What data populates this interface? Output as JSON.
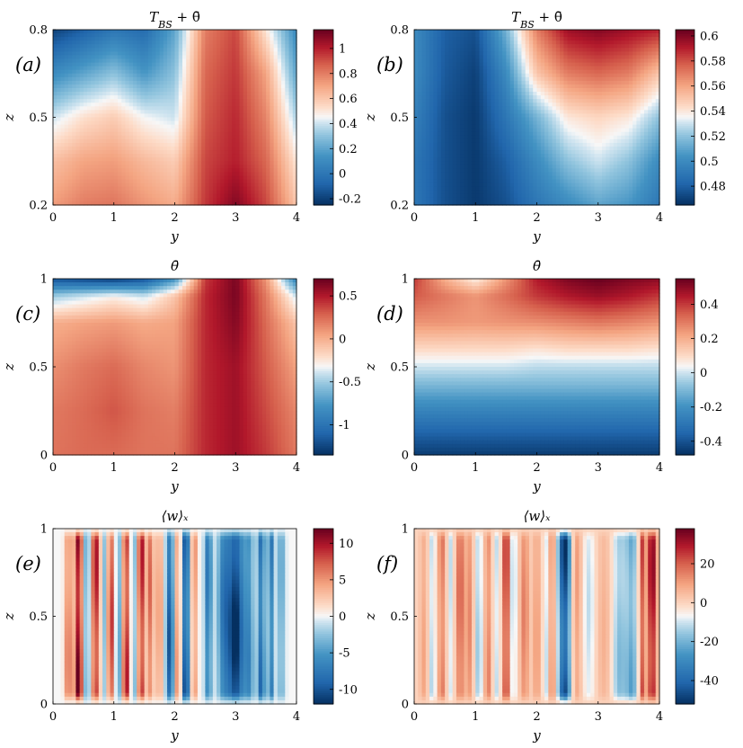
{
  "colors": {
    "colormap_low": "#053061",
    "colormap_mid": "#f7f7f7",
    "colormap_high": "#67001f"
  },
  "chart_data": [
    {
      "type": "heatmap",
      "panel_label": "(a)",
      "title": "T_BS + θ̄",
      "xlabel": "y",
      "ylabel": "z",
      "xlim": [
        0,
        4
      ],
      "ylim": [
        0.2,
        0.8
      ],
      "x_ticks": [
        "0",
        "1",
        "2",
        "3",
        "4"
      ],
      "y_ticks": [
        "0.2",
        "0.5",
        "0.8"
      ],
      "colorbar": {
        "range": [
          -0.25,
          1.15
        ],
        "ticks": [
          "-0.2",
          "0",
          "0.2",
          "0.4",
          "0.6",
          "0.8",
          "1"
        ],
        "tick_values": [
          -0.2,
          0,
          0.2,
          0.4,
          0.6,
          0.8,
          1.0
        ]
      },
      "x": [
        0,
        0.5,
        1,
        1.5,
        2,
        2.5,
        3,
        3.5,
        4
      ],
      "z": [
        0.2,
        0.35,
        0.5,
        0.65,
        0.8
      ],
      "values": [
        [
          0.72,
          0.8,
          0.82,
          0.74,
          0.68,
          0.95,
          1.1,
          0.92,
          0.6
        ],
        [
          0.62,
          0.7,
          0.72,
          0.64,
          0.58,
          0.92,
          1.0,
          0.85,
          0.5
        ],
        [
          0.4,
          0.52,
          0.58,
          0.45,
          0.4,
          0.88,
          0.98,
          0.78,
          0.35
        ],
        [
          0.1,
          0.2,
          0.3,
          0.15,
          0.3,
          0.85,
          0.95,
          0.7,
          0.2
        ],
        [
          -0.2,
          -0.1,
          0.0,
          -0.05,
          0.2,
          0.8,
          0.92,
          0.5,
          0.1
        ]
      ]
    },
    {
      "type": "heatmap",
      "panel_label": "(b)",
      "title": "T_BS + θ̄",
      "xlabel": "y",
      "ylabel": "z",
      "xlim": [
        0,
        4
      ],
      "ylim": [
        0.2,
        0.8
      ],
      "x_ticks": [
        "0",
        "1",
        "2",
        "3",
        "4"
      ],
      "y_ticks": [
        "0.2",
        "0.5",
        "0.8"
      ],
      "colorbar": {
        "range": [
          0.465,
          0.605
        ],
        "ticks": [
          "0.48",
          "0.5",
          "0.52",
          "0.54",
          "0.56",
          "0.58",
          "0.6"
        ],
        "tick_values": [
          0.48,
          0.5,
          0.52,
          0.54,
          0.56,
          0.58,
          0.6
        ]
      },
      "x": [
        0,
        0.5,
        1,
        1.5,
        2,
        2.5,
        3,
        3.5,
        4
      ],
      "z": [
        0.2,
        0.35,
        0.5,
        0.65,
        0.8
      ],
      "values": [
        [
          0.49,
          0.475,
          0.468,
          0.475,
          0.49,
          0.5,
          0.51,
          0.505,
          0.49
        ],
        [
          0.49,
          0.475,
          0.468,
          0.48,
          0.5,
          0.52,
          0.53,
          0.52,
          0.5
        ],
        [
          0.495,
          0.475,
          0.468,
          0.49,
          0.515,
          0.54,
          0.545,
          0.54,
          0.52
        ],
        [
          0.5,
          0.478,
          0.47,
          0.5,
          0.55,
          0.57,
          0.575,
          0.57,
          0.55
        ],
        [
          0.5,
          0.48,
          0.475,
          0.515,
          0.57,
          0.595,
          0.6,
          0.595,
          0.59
        ]
      ]
    },
    {
      "type": "heatmap",
      "panel_label": "(c)",
      "title": "θ̄",
      "xlabel": "y",
      "ylabel": "z",
      "xlim": [
        0,
        4
      ],
      "ylim": [
        0,
        1
      ],
      "x_ticks": [
        "0",
        "1",
        "2",
        "3",
        "4"
      ],
      "y_ticks": [
        "0",
        "0.5",
        "1"
      ],
      "colorbar": {
        "range": [
          -1.35,
          0.7
        ],
        "ticks": [
          "-1",
          "-0.5",
          "0",
          "0.5"
        ],
        "tick_values": [
          -1.0,
          -0.5,
          0.0,
          0.5
        ]
      },
      "x": [
        0,
        0.5,
        1,
        1.5,
        2,
        2.5,
        3,
        3.5,
        4
      ],
      "z": [
        0,
        0.25,
        0.5,
        0.75,
        0.9,
        1
      ],
      "values": [
        [
          0.22,
          0.25,
          0.25,
          0.22,
          0.22,
          0.45,
          0.55,
          0.4,
          0.2
        ],
        [
          0.2,
          0.25,
          0.32,
          0.22,
          0.18,
          0.45,
          0.55,
          0.35,
          0.15
        ],
        [
          0.12,
          0.2,
          0.25,
          0.15,
          0.1,
          0.45,
          0.55,
          0.3,
          0.05
        ],
        [
          0.0,
          0.05,
          0.08,
          0.02,
          0.05,
          0.45,
          0.62,
          0.25,
          -0.1
        ],
        [
          -0.5,
          -0.4,
          -0.3,
          -0.4,
          -0.1,
          0.45,
          0.65,
          0.2,
          -0.4
        ],
        [
          -1.2,
          -1.25,
          -1.3,
          -1.2,
          -0.8,
          0.4,
          0.65,
          0.1,
          -0.9
        ]
      ]
    },
    {
      "type": "heatmap",
      "panel_label": "(d)",
      "title": "θ̄",
      "xlabel": "y",
      "ylabel": "z",
      "xlim": [
        0,
        4
      ],
      "ylim": [
        0,
        1
      ],
      "x_ticks": [
        "0",
        "1",
        "2",
        "3",
        "4"
      ],
      "y_ticks": [
        "0",
        "0.5",
        "1"
      ],
      "colorbar": {
        "range": [
          -0.48,
          0.55
        ],
        "ticks": [
          "-0.4",
          "-0.2",
          "0",
          "0.2",
          "0.4"
        ],
        "tick_values": [
          -0.4,
          -0.2,
          0.0,
          0.2,
          0.4
        ]
      },
      "x": [
        0,
        0.5,
        1,
        1.5,
        2,
        2.5,
        3,
        3.5,
        4
      ],
      "z": [
        0,
        0.1,
        0.25,
        0.4,
        0.5,
        0.6,
        0.75,
        0.9,
        1
      ],
      "values": [
        [
          -0.45,
          -0.45,
          -0.45,
          -0.45,
          -0.45,
          -0.45,
          -0.45,
          -0.45,
          -0.45
        ],
        [
          -0.38,
          -0.38,
          -0.38,
          -0.38,
          -0.38,
          -0.38,
          -0.38,
          -0.38,
          -0.38
        ],
        [
          -0.25,
          -0.25,
          -0.25,
          -0.25,
          -0.25,
          -0.25,
          -0.25,
          -0.25,
          -0.25
        ],
        [
          -0.1,
          -0.1,
          -0.1,
          -0.1,
          -0.1,
          -0.1,
          -0.1,
          -0.1,
          -0.1
        ],
        [
          0.0,
          0.0,
          0.0,
          0.0,
          -0.02,
          -0.02,
          -0.02,
          -0.02,
          -0.02
        ],
        [
          0.1,
          0.1,
          0.1,
          0.1,
          0.08,
          0.1,
          0.1,
          0.1,
          0.08
        ],
        [
          0.25,
          0.25,
          0.24,
          0.25,
          0.26,
          0.28,
          0.3,
          0.28,
          0.25
        ],
        [
          0.35,
          0.3,
          0.25,
          0.32,
          0.4,
          0.45,
          0.48,
          0.45,
          0.4
        ],
        [
          0.4,
          0.2,
          0.05,
          0.25,
          0.45,
          0.52,
          0.55,
          0.52,
          0.5
        ]
      ]
    },
    {
      "type": "heatmap",
      "panel_label": "(e)",
      "title": "⟨w⟩ₓ",
      "xlabel": "y",
      "ylabel": "z",
      "xlim": [
        0,
        4
      ],
      "ylim": [
        0,
        1
      ],
      "x_ticks": [
        "0",
        "1",
        "2",
        "3",
        "4"
      ],
      "y_ticks": [
        "0",
        "0.5",
        "1"
      ],
      "colorbar": {
        "range": [
          -12,
          12
        ],
        "ticks": [
          "-10",
          "-5",
          "0",
          "5",
          "10"
        ],
        "tick_values": [
          -10,
          -5,
          0,
          5,
          10
        ]
      },
      "stripes": [
        [
          0.25,
          0.06,
          6
        ],
        [
          0.42,
          0.07,
          11
        ],
        [
          0.55,
          0.06,
          -4
        ],
        [
          0.7,
          0.07,
          9
        ],
        [
          0.85,
          0.05,
          -3
        ],
        [
          0.95,
          0.06,
          8
        ],
        [
          1.08,
          0.05,
          -4
        ],
        [
          1.2,
          0.06,
          9
        ],
        [
          1.33,
          0.05,
          -3
        ],
        [
          1.45,
          0.06,
          9
        ],
        [
          1.6,
          0.06,
          6
        ],
        [
          1.75,
          0.05,
          5
        ],
        [
          1.92,
          0.06,
          -9
        ],
        [
          2.05,
          0.05,
          5
        ],
        [
          2.18,
          0.06,
          -10
        ],
        [
          2.32,
          0.05,
          5
        ],
        [
          2.55,
          0.06,
          -7
        ],
        [
          2.8,
          0.1,
          -6
        ],
        [
          3.0,
          0.14,
          -11
        ],
        [
          3.22,
          0.08,
          -5
        ],
        [
          3.42,
          0.06,
          -8
        ],
        [
          3.58,
          0.05,
          -7
        ],
        [
          3.75,
          0.06,
          -4
        ]
      ]
    },
    {
      "type": "heatmap",
      "panel_label": "(f)",
      "title": "⟨w⟩ₓ",
      "xlabel": "y",
      "ylabel": "z",
      "xlim": [
        0,
        4
      ],
      "ylim": [
        0,
        1
      ],
      "x_ticks": [
        "0",
        "1",
        "2",
        "3",
        "4"
      ],
      "y_ticks": [
        "0",
        "0.5",
        "1"
      ],
      "colorbar": {
        "range": [
          -52,
          38
        ],
        "ticks": [
          "-40",
          "-20",
          "0",
          "20"
        ],
        "tick_values": [
          -40,
          -20,
          0,
          20
        ]
      },
      "stripes": [
        [
          0.15,
          0.06,
          8
        ],
        [
          0.3,
          0.05,
          -12
        ],
        [
          0.45,
          0.06,
          15
        ],
        [
          0.6,
          0.05,
          -10
        ],
        [
          0.75,
          0.07,
          18
        ],
        [
          0.9,
          0.06,
          12
        ],
        [
          1.05,
          0.06,
          -14
        ],
        [
          1.2,
          0.05,
          14
        ],
        [
          1.35,
          0.05,
          -10
        ],
        [
          1.5,
          0.05,
          28
        ],
        [
          1.62,
          0.05,
          -12
        ],
        [
          1.8,
          0.07,
          14
        ],
        [
          2.0,
          0.06,
          10
        ],
        [
          2.15,
          0.05,
          -10
        ],
        [
          2.25,
          0.06,
          12
        ],
        [
          2.45,
          0.1,
          -46
        ],
        [
          2.65,
          0.08,
          10
        ],
        [
          2.85,
          0.1,
          -10
        ],
        [
          3.1,
          0.12,
          6
        ],
        [
          3.35,
          0.12,
          -16
        ],
        [
          3.55,
          0.1,
          -20
        ],
        [
          3.72,
          0.05,
          22
        ],
        [
          3.88,
          0.07,
          32
        ]
      ]
    }
  ]
}
